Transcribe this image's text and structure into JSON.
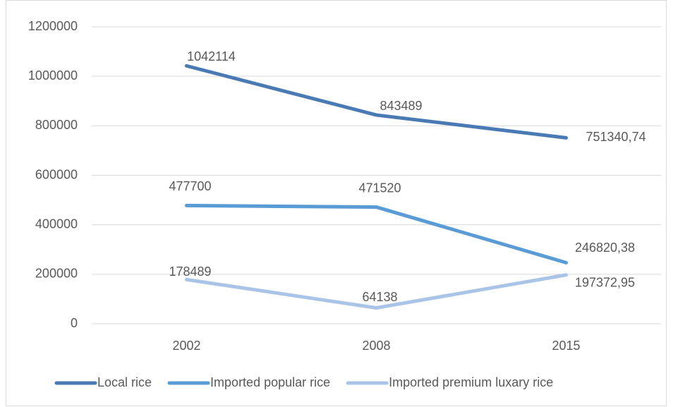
{
  "chart_data": {
    "type": "line",
    "categories": [
      "2002",
      "2008",
      "2015"
    ],
    "series": [
      {
        "name": "Local rice",
        "color": "#4a7ab4",
        "values": [
          1042114,
          843489,
          751340.74
        ],
        "value_labels": [
          "1042114",
          "843489",
          "751340,74"
        ]
      },
      {
        "name": "Imported popular rice",
        "color": "#5b9bd5",
        "values": [
          477700,
          471520,
          246820.38
        ],
        "value_labels": [
          "477700",
          "471520",
          "246820,38"
        ]
      },
      {
        "name": "Imported premium luxary rice",
        "color": "#a9c4e6",
        "values": [
          178489,
          64138,
          197372.95
        ],
        "value_labels": [
          "178489",
          "64138",
          "197372,95"
        ]
      }
    ],
    "ylim": [
      0,
      1200000
    ],
    "yticks": [
      0,
      200000,
      400000,
      600000,
      800000,
      1000000,
      1200000
    ],
    "grid": true,
    "legend": "bottom"
  }
}
